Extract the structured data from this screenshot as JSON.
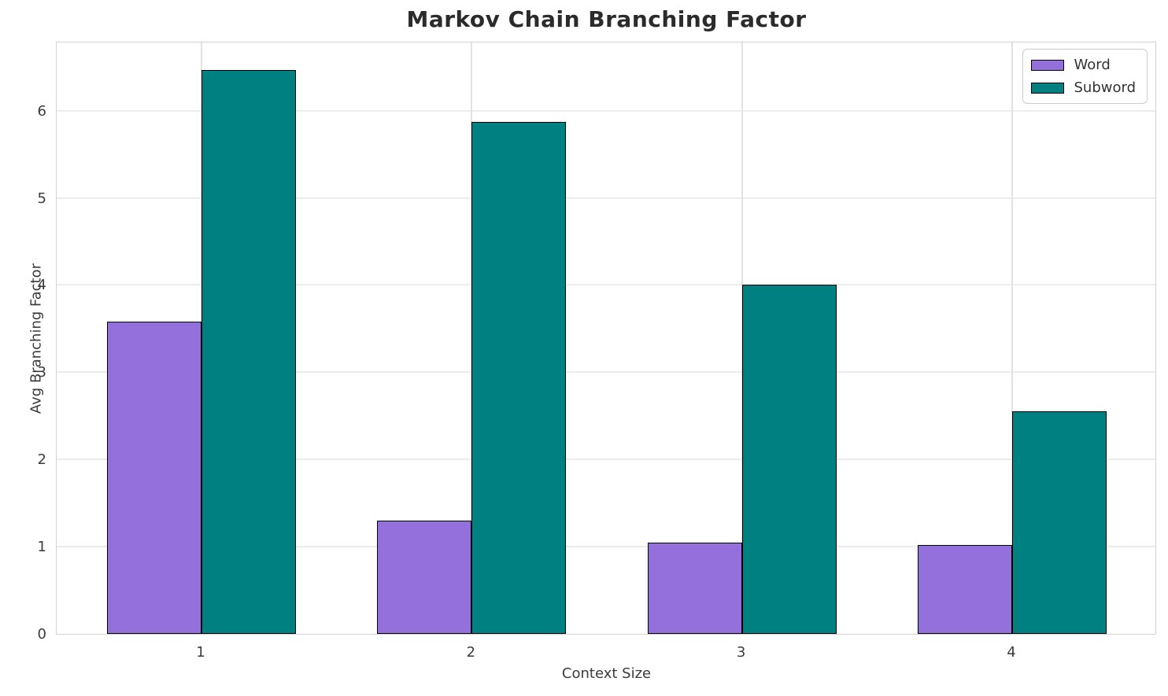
{
  "chart_data": {
    "type": "bar",
    "title": "Markov Chain Branching Factor",
    "xlabel": "Context Size",
    "ylabel": "Avg Branching Factor",
    "categories": [
      "1",
      "2",
      "3",
      "4"
    ],
    "series": [
      {
        "name": "Word",
        "color": "#9370db",
        "values": [
          3.58,
          1.3,
          1.05,
          1.02
        ]
      },
      {
        "name": "Subword",
        "color": "#008080",
        "values": [
          6.47,
          5.87,
          4.0,
          2.55
        ]
      }
    ],
    "ylim": [
      0,
      6.8
    ],
    "yticks": [
      0,
      1,
      2,
      3,
      4,
      5,
      6
    ],
    "grid": true,
    "legend_position": "upper right",
    "bar_edge_color": "#000000",
    "background_color": "#ffffff"
  }
}
